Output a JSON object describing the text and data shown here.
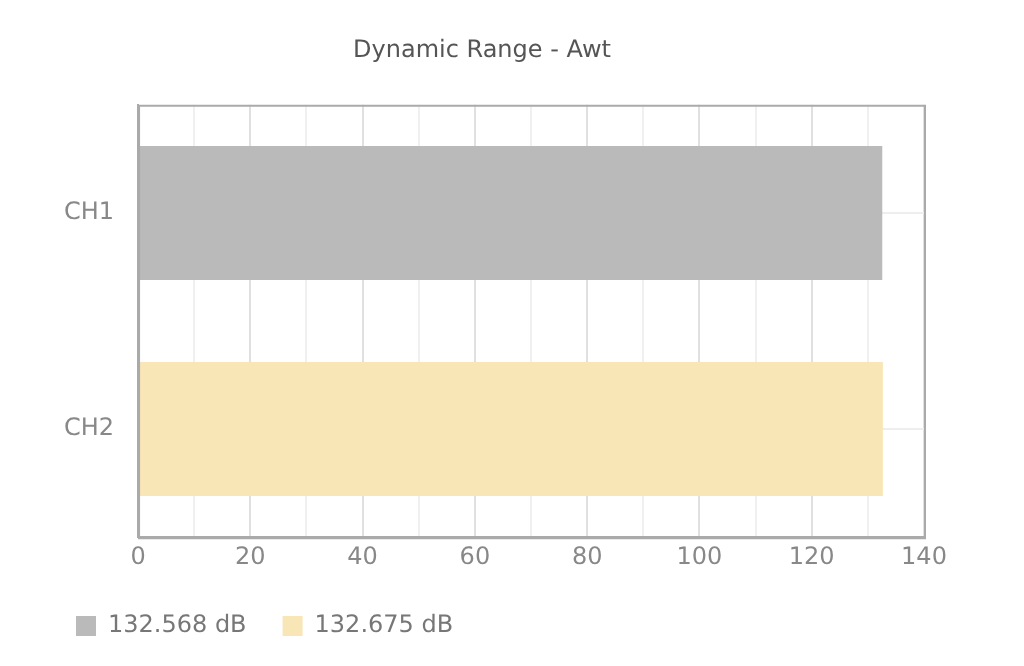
{
  "chart_data": {
    "type": "bar",
    "orientation": "horizontal",
    "stacked": true,
    "title": "Dynamic Range - Awt",
    "categories": [
      "CH1",
      "CH2"
    ],
    "series": [
      {
        "name": "132.568 dB",
        "color": "#bababa",
        "values": [
          132.568,
          null
        ]
      },
      {
        "name": "132.675 dB",
        "color": "#f8e6b6",
        "values": [
          null,
          132.675
        ]
      }
    ],
    "xlim": [
      0,
      140
    ],
    "xticks": [
      0,
      {
        "value": 10,
        "label": null
      },
      20,
      {
        "value": 30,
        "label": null
      },
      40,
      {
        "value": 50,
        "label": null
      },
      60,
      {
        "value": 70,
        "label": null
      },
      80,
      {
        "value": 90,
        "label": null
      },
      100,
      {
        "value": 110,
        "label": null
      },
      120,
      {
        "value": 130,
        "label": null
      },
      140
    ],
    "grid": true,
    "legend": "bottom left"
  }
}
